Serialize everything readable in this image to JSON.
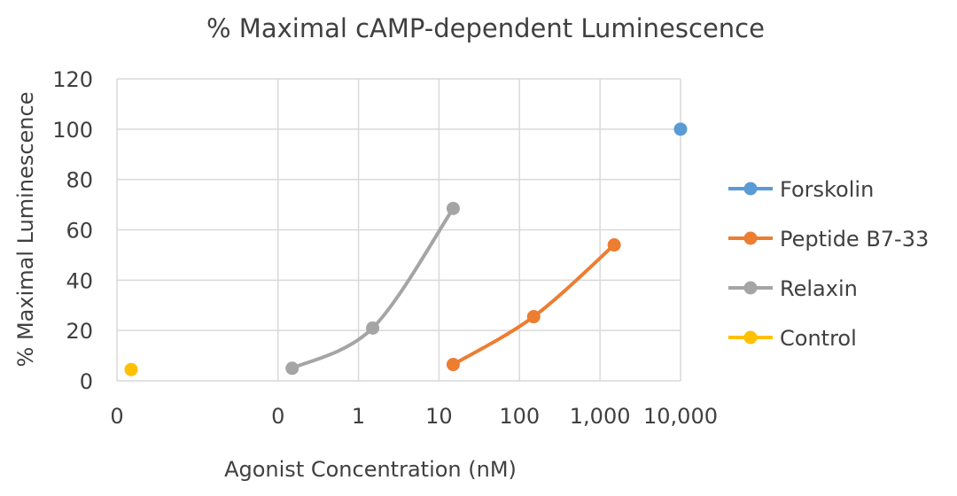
{
  "chart_data": {
    "type": "scatter",
    "title": "% Maximal cAMP-dependent Luminescence",
    "xlabel": "Agonist Concentration (nM)",
    "ylabel": "% Maximal Luminescence",
    "x_scale": "log",
    "xlim": [
      0.001,
      10000
    ],
    "ylim": [
      0,
      120
    ],
    "x_ticks": [
      {
        "value": 0.001,
        "label": "0"
      },
      {
        "value": 0.1,
        "label": "0"
      },
      {
        "value": 1,
        "label": "1"
      },
      {
        "value": 10,
        "label": "10"
      },
      {
        "value": 100,
        "label": "100"
      },
      {
        "value": 1000,
        "label": "1,000"
      },
      {
        "value": 10000,
        "label": "10,000"
      }
    ],
    "y_ticks": [
      0,
      20,
      40,
      60,
      80,
      100,
      120
    ],
    "y_tick_labels": [
      "0",
      "20",
      "40",
      "60",
      "80",
      "100",
      "120"
    ],
    "grid": true,
    "legend_position": "right",
    "series": [
      {
        "name": "Forskolin",
        "color": "#5b9bd5",
        "smooth": true,
        "points": [
          {
            "x": 10000,
            "y": 100
          }
        ]
      },
      {
        "name": "Peptide B7-33",
        "color": "#ed7d31",
        "smooth": true,
        "points": [
          {
            "x": 15,
            "y": 6.5
          },
          {
            "x": 150,
            "y": 25.5
          },
          {
            "x": 1500,
            "y": 54
          }
        ]
      },
      {
        "name": "Relaxin",
        "color": "#a5a5a5",
        "smooth": true,
        "points": [
          {
            "x": 0.15,
            "y": 5
          },
          {
            "x": 1.5,
            "y": 21
          },
          {
            "x": 15,
            "y": 68.5
          }
        ]
      },
      {
        "name": "Control",
        "color": "#ffc000",
        "smooth": true,
        "points": [
          {
            "x": 0.0015,
            "y": 4.5
          }
        ]
      }
    ]
  }
}
